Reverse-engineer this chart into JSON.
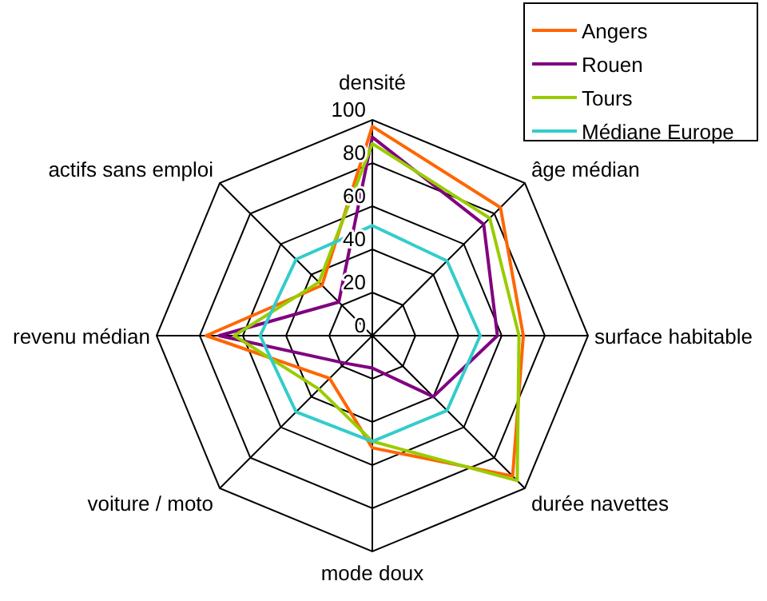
{
  "chart_data": {
    "type": "radar",
    "categories": [
      "densité",
      "âge médian",
      "surface habitable",
      "durée navettes",
      "mode doux",
      "voiture / moto",
      "revenu médian",
      "actifs sans emploi"
    ],
    "ylim": [
      0,
      100
    ],
    "yticks": [
      0,
      20,
      40,
      60,
      80,
      100
    ],
    "grid": true,
    "legend": "top right",
    "series": [
      {
        "name": "Angers",
        "color": "#ff6600",
        "values": [
          97,
          84,
          70,
          92,
          52,
          28,
          77,
          33
        ]
      },
      {
        "name": "Rouen",
        "color": "#800080",
        "values": [
          92,
          73,
          58,
          40,
          15,
          18,
          71,
          22
        ]
      },
      {
        "name": "Tours",
        "color": "#99cc00",
        "values": [
          89,
          77,
          68,
          95,
          49,
          35,
          64,
          35
        ]
      },
      {
        "name": "Médiane Europe",
        "color": "#33cccc",
        "values": [
          51,
          49,
          50,
          49,
          49,
          50,
          52,
          50
        ]
      }
    ]
  }
}
